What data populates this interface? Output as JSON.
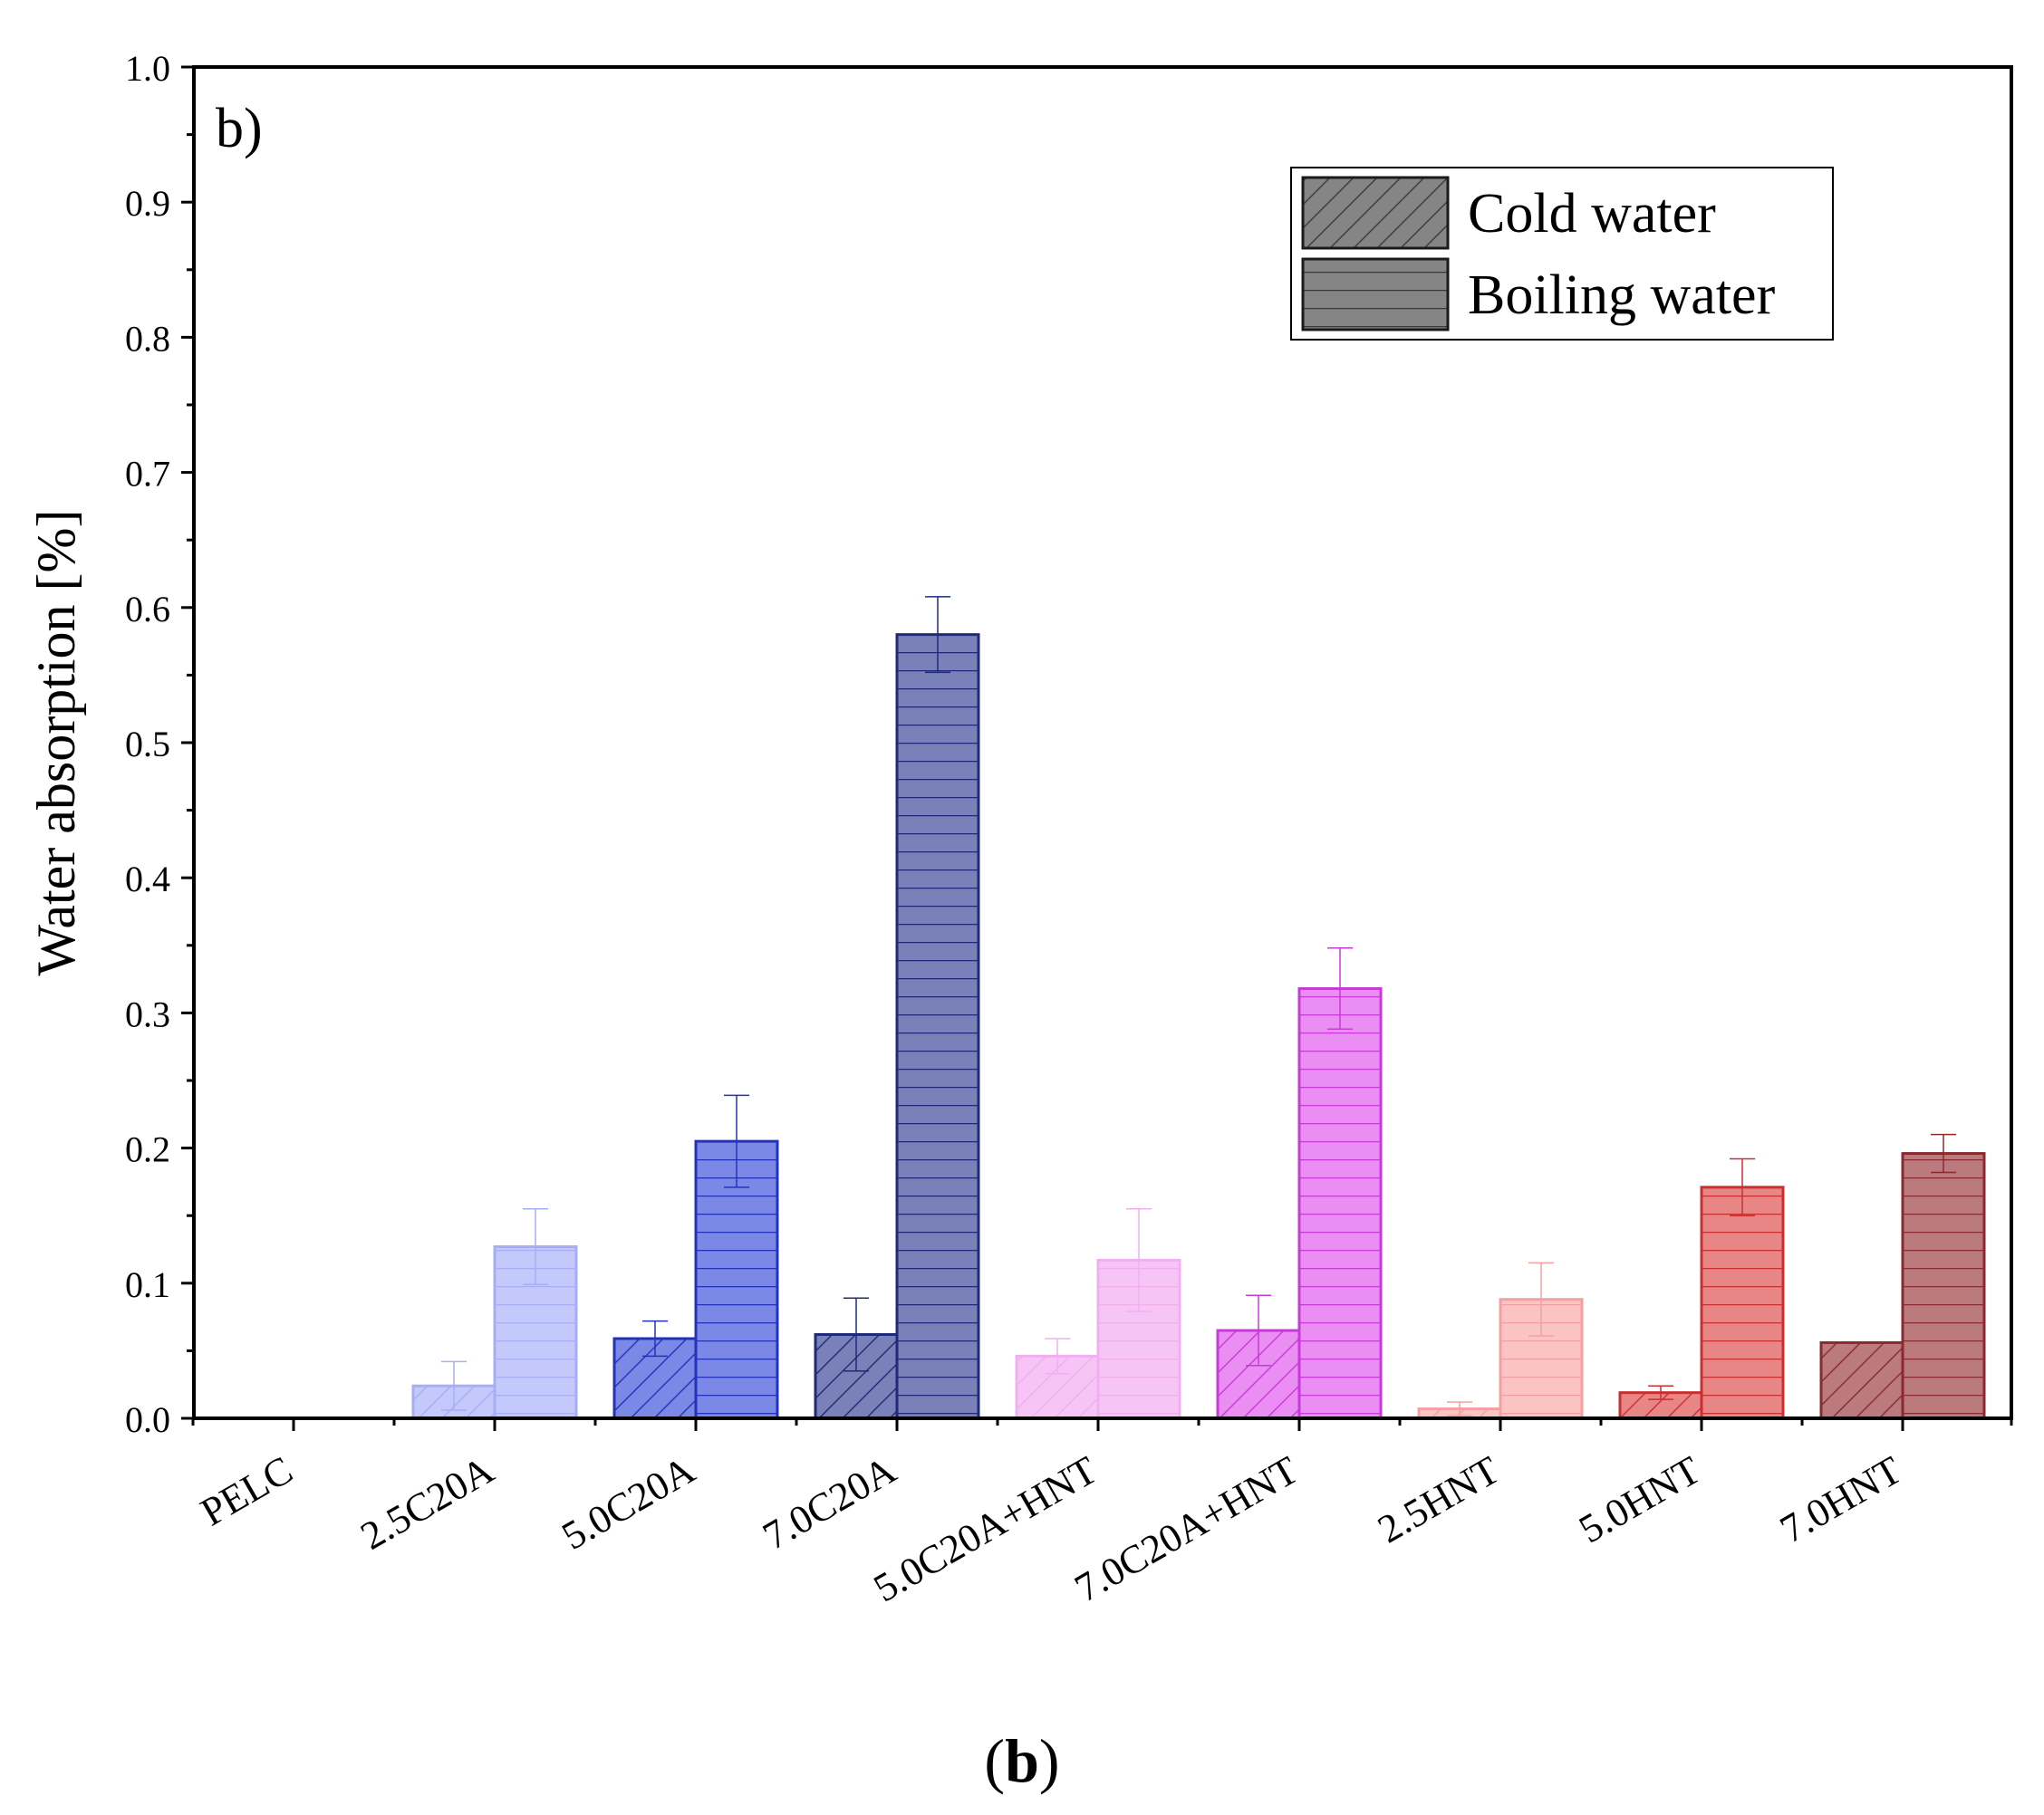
{
  "chart_data": {
    "type": "bar",
    "panel_label": "b)",
    "ylabel": "Water absorption [%]",
    "xlabel": "",
    "ylim": [
      0,
      1.0
    ],
    "yticks": [
      "0.0",
      "0.1",
      "0.2",
      "0.3",
      "0.4",
      "0.5",
      "0.6",
      "0.7",
      "0.8",
      "0.9",
      "1.0"
    ],
    "categories": [
      "PELC",
      "2.5C20A",
      "5.0C20A",
      "7.0C20A",
      "5.0C20A+HNT",
      "7.0C20A+HNT",
      "2.5HNT",
      "5.0HNT",
      "7.0HNT"
    ],
    "colors": [
      "#ffffff",
      "#c3c9fb",
      "#7b88e6",
      "#7a80b8",
      "#f6c5f6",
      "#ea8ef3",
      "#fbc4c4",
      "#e88585",
      "#bb7b7e"
    ],
    "edge_colors": [
      "#ffffff",
      "#a6aef5",
      "#2233bb",
      "#1f2a7a",
      "#f0b0f0",
      "#c83ad8",
      "#f4a0a0",
      "#c83030",
      "#8a2a2e"
    ],
    "series": [
      {
        "name": "Cold water",
        "pattern": "hatch",
        "values": [
          0,
          0.024,
          0.059,
          0.062,
          0.046,
          0.065,
          0.007,
          0.019,
          0.056
        ],
        "errors": [
          0,
          0.018,
          0.013,
          0.027,
          0.013,
          0.026,
          0.005,
          0.005,
          0
        ]
      },
      {
        "name": "Boiling water",
        "pattern": "horizontal",
        "values": [
          0,
          0.127,
          0.205,
          0.58,
          0.117,
          0.318,
          0.088,
          0.171,
          0.196
        ],
        "errors": [
          0,
          0.028,
          0.034,
          0.028,
          0.038,
          0.03,
          0.027,
          0.021,
          0.014
        ]
      }
    ],
    "legend": {
      "position": "top-right",
      "entries": [
        "Cold water",
        "Boiling water"
      ],
      "swatch_color": "#858585"
    }
  },
  "caption": {
    "open": "(",
    "letter": "b",
    "close": ")"
  }
}
